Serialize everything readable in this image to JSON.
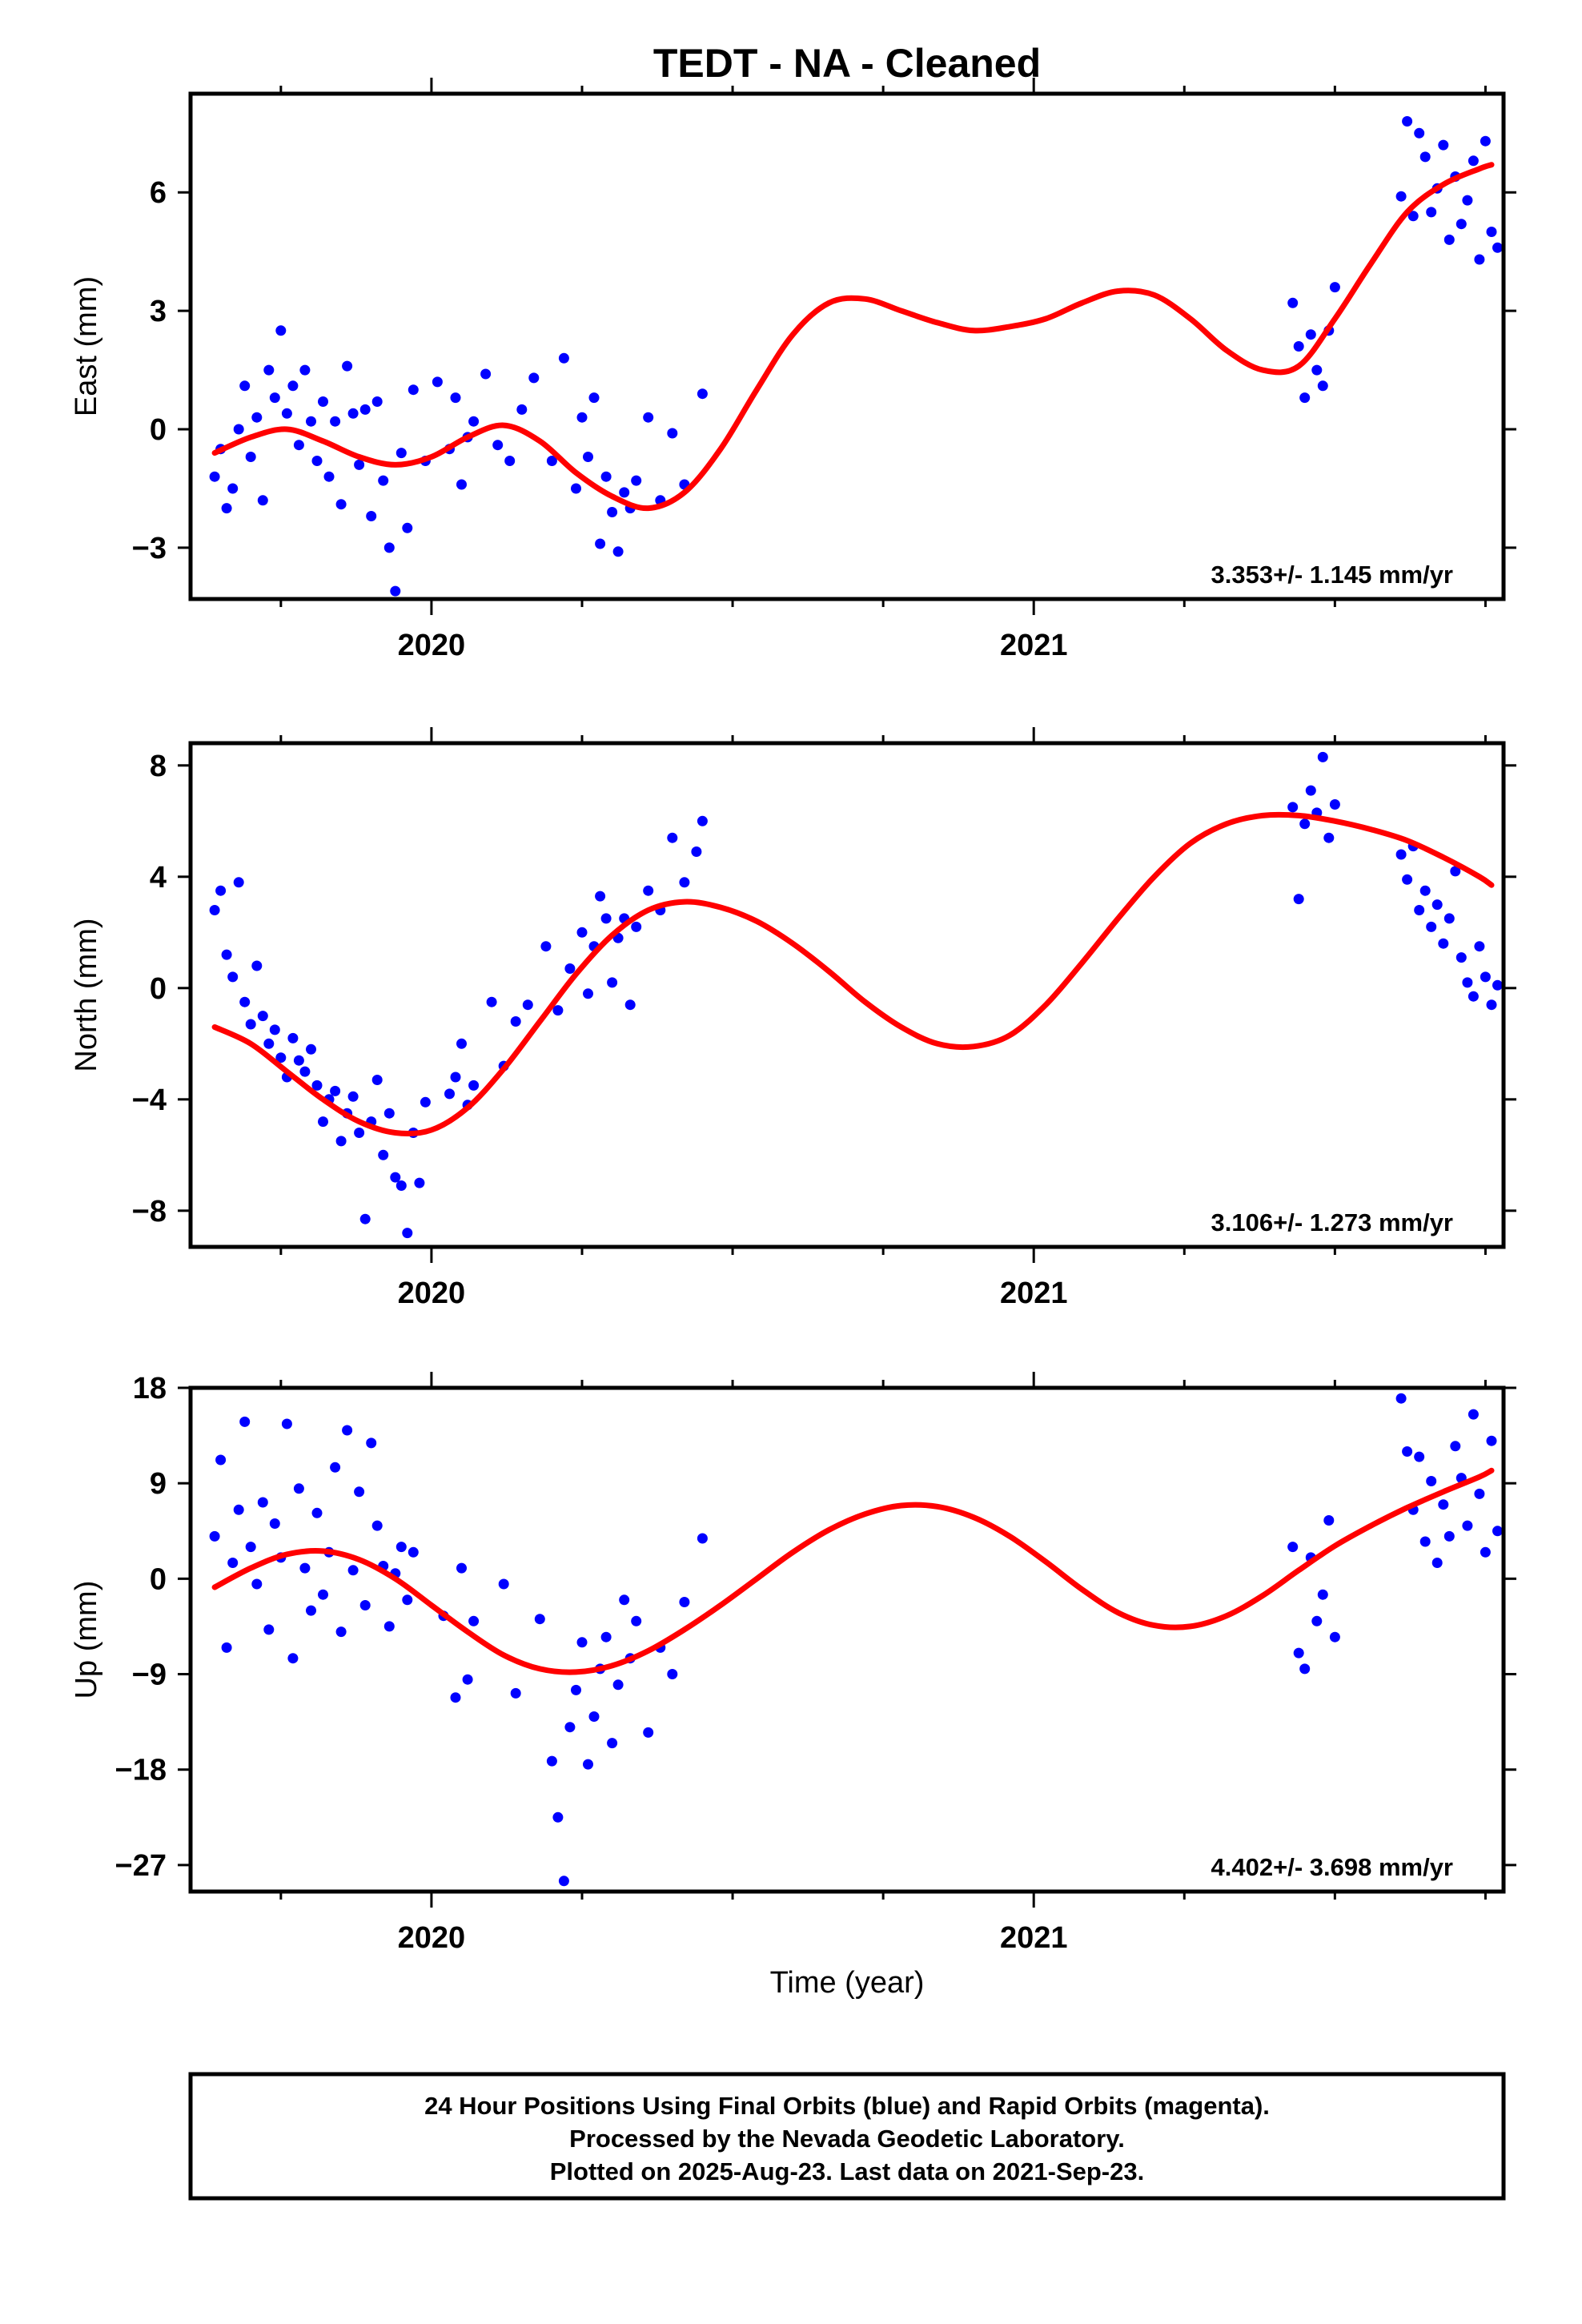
{
  "title": "TEDT  - NA - Cleaned",
  "xaxis_label": "Time (year)",
  "footer": [
    "24 Hour Positions Using Final Orbits (blue) and Rapid Orbits (magenta).",
    "Processed by the Nevada Geodetic Laboratory.",
    "Plotted on 2025-Aug-23. Last data on 2021-Sep-23."
  ],
  "colors": {
    "data_points": "#0000ff",
    "model_curve": "#ff0000",
    "frame": "#000000"
  },
  "chart_data": [
    {
      "type": "scatter",
      "panel": "east",
      "ylabel": "East (mm)",
      "rate_text": "3.353+/- 1.145 mm/yr",
      "xlim": [
        2019.6,
        2021.78
      ],
      "ylim": [
        -4.3,
        8.5
      ],
      "yticks": [
        -3,
        0,
        3,
        6
      ],
      "xticks_major": [
        2020,
        2021
      ],
      "xticks_minor": [
        2019.75,
        2020.25,
        2020.5,
        2020.75,
        2021.25,
        2021.5,
        2021.75
      ],
      "grid": false,
      "series": [
        {
          "kind": "points",
          "x": [
            2019.64,
            2019.65,
            2019.66,
            2019.67,
            2019.68,
            2019.69,
            2019.7,
            2019.71,
            2019.72,
            2019.73,
            2019.74,
            2019.75,
            2019.76,
            2019.77,
            2019.78,
            2019.79,
            2019.8,
            2019.81,
            2019.82,
            2019.83,
            2019.84,
            2019.85,
            2019.86,
            2019.87,
            2019.88,
            2019.89,
            2019.9,
            2019.91,
            2019.92,
            2019.93,
            2019.94,
            2019.95,
            2019.96,
            2019.97,
            2019.99,
            2020.01,
            2020.03,
            2020.04,
            2020.05,
            2020.06,
            2020.07,
            2020.09,
            2020.11,
            2020.13,
            2020.15,
            2020.17,
            2020.2,
            2020.22,
            2020.24,
            2020.25,
            2020.26,
            2020.27,
            2020.28,
            2020.29,
            2020.3,
            2020.31,
            2020.32,
            2020.33,
            2020.34,
            2020.36,
            2020.38,
            2020.4,
            2020.42,
            2020.45,
            2021.43,
            2021.44,
            2021.45,
            2021.46,
            2021.47,
            2021.48,
            2021.49,
            2021.5,
            2021.61,
            2021.62,
            2021.63,
            2021.64,
            2021.65,
            2021.66,
            2021.67,
            2021.68,
            2021.69,
            2021.7,
            2021.71,
            2021.72,
            2021.73,
            2021.74,
            2021.75,
            2021.76,
            2021.77
          ],
          "y": [
            -1.2,
            -0.5,
            -2.0,
            -1.5,
            0.0,
            1.1,
            -0.7,
            0.3,
            -1.8,
            1.5,
            0.8,
            2.5,
            0.4,
            1.1,
            -0.4,
            1.5,
            0.2,
            -0.8,
            0.7,
            -1.2,
            0.2,
            -1.9,
            1.6,
            0.4,
            -0.9,
            0.5,
            -2.2,
            0.7,
            -1.3,
            -3.0,
            -4.1,
            -0.6,
            -2.5,
            1.0,
            -0.8,
            1.2,
            -0.5,
            0.8,
            -1.4,
            -0.2,
            0.2,
            1.4,
            -0.4,
            -0.8,
            0.5,
            1.3,
            -0.8,
            1.8,
            -1.5,
            0.3,
            -0.7,
            0.8,
            -2.9,
            -1.2,
            -2.1,
            -3.1,
            -1.6,
            -2.0,
            -1.3,
            0.3,
            -1.8,
            -0.1,
            -1.4,
            0.9,
            3.2,
            2.1,
            0.8,
            2.4,
            1.5,
            1.1,
            2.5,
            3.6,
            5.9,
            7.8,
            5.4,
            7.5,
            6.9,
            5.5,
            6.1,
            7.2,
            4.8,
            6.4,
            5.2,
            5.8,
            6.8,
            4.3,
            7.3,
            5.0,
            4.6
          ]
        },
        {
          "kind": "model",
          "x": [
            2019.64,
            2019.7,
            2019.76,
            2019.82,
            2019.88,
            2019.94,
            2020.0,
            2020.06,
            2020.12,
            2020.18,
            2020.24,
            2020.3,
            2020.36,
            2020.42,
            2020.48,
            2020.54,
            2020.6,
            2020.66,
            2020.72,
            2020.78,
            2020.84,
            2020.9,
            2020.96,
            2021.02,
            2021.08,
            2021.14,
            2021.2,
            2021.26,
            2021.32,
            2021.38,
            2021.44,
            2021.5,
            2021.56,
            2021.62,
            2021.68,
            2021.74,
            2021.76
          ],
          "y": [
            -0.6,
            -0.2,
            0.0,
            -0.3,
            -0.7,
            -0.9,
            -0.7,
            -0.2,
            0.1,
            -0.3,
            -1.1,
            -1.7,
            -2.0,
            -1.6,
            -0.5,
            1.0,
            2.4,
            3.2,
            3.3,
            3.0,
            2.7,
            2.5,
            2.6,
            2.8,
            3.2,
            3.5,
            3.4,
            2.8,
            2.0,
            1.5,
            1.6,
            2.8,
            4.2,
            5.5,
            6.2,
            6.6,
            6.7
          ]
        }
      ]
    },
    {
      "type": "scatter",
      "panel": "north",
      "ylabel": "North (mm)",
      "rate_text": "3.106+/- 1.273 mm/yr",
      "xlim": [
        2019.6,
        2021.78
      ],
      "ylim": [
        -9.3,
        8.8
      ],
      "yticks": [
        -8,
        -4,
        0,
        4,
        8
      ],
      "xticks_major": [
        2020,
        2021
      ],
      "xticks_minor": [
        2019.75,
        2020.25,
        2020.5,
        2020.75,
        2021.25,
        2021.5,
        2021.75
      ],
      "grid": false,
      "series": [
        {
          "kind": "points",
          "x": [
            2019.64,
            2019.65,
            2019.66,
            2019.67,
            2019.68,
            2019.69,
            2019.7,
            2019.71,
            2019.72,
            2019.73,
            2019.74,
            2019.75,
            2019.76,
            2019.77,
            2019.78,
            2019.79,
            2019.8,
            2019.81,
            2019.82,
            2019.83,
            2019.84,
            2019.85,
            2019.86,
            2019.87,
            2019.88,
            2019.89,
            2019.9,
            2019.91,
            2019.92,
            2019.93,
            2019.94,
            2019.95,
            2019.96,
            2019.97,
            2019.98,
            2019.99,
            2020.03,
            2020.04,
            2020.05,
            2020.06,
            2020.07,
            2020.1,
            2020.12,
            2020.14,
            2020.16,
            2020.19,
            2020.21,
            2020.23,
            2020.25,
            2020.26,
            2020.27,
            2020.28,
            2020.29,
            2020.3,
            2020.31,
            2020.32,
            2020.33,
            2020.34,
            2020.36,
            2020.38,
            2020.4,
            2020.42,
            2020.44,
            2020.45,
            2021.43,
            2021.44,
            2021.45,
            2021.46,
            2021.47,
            2021.48,
            2021.49,
            2021.5,
            2021.61,
            2021.62,
            2021.63,
            2021.64,
            2021.65,
            2021.66,
            2021.67,
            2021.68,
            2021.69,
            2021.7,
            2021.71,
            2021.72,
            2021.73,
            2021.74,
            2021.75,
            2021.76,
            2021.77
          ],
          "y": [
            2.8,
            3.5,
            1.2,
            0.4,
            3.8,
            -0.5,
            -1.3,
            0.8,
            -1.0,
            -2.0,
            -1.5,
            -2.5,
            -3.2,
            -1.8,
            -2.6,
            -3.0,
            -2.2,
            -3.5,
            -4.8,
            -4.0,
            -3.7,
            -5.5,
            -4.5,
            -3.9,
            -5.2,
            -8.3,
            -4.8,
            -3.3,
            -6.0,
            -4.5,
            -6.8,
            -7.1,
            -8.8,
            -5.2,
            -7.0,
            -4.1,
            -3.8,
            -3.2,
            -2.0,
            -4.2,
            -3.5,
            -0.5,
            -2.8,
            -1.2,
            -0.6,
            1.5,
            -0.8,
            0.7,
            2.0,
            -0.2,
            1.5,
            3.3,
            2.5,
            0.2,
            1.8,
            2.5,
            -0.6,
            2.2,
            3.5,
            2.8,
            5.4,
            3.8,
            4.9,
            6.0,
            6.5,
            3.2,
            5.9,
            7.1,
            6.3,
            8.3,
            5.4,
            6.6,
            4.8,
            3.9,
            5.1,
            2.8,
            3.5,
            2.2,
            3.0,
            1.6,
            2.5,
            4.2,
            1.1,
            0.2,
            -0.3,
            1.5,
            0.4,
            -0.6,
            0.1
          ]
        },
        {
          "kind": "model",
          "x": [
            2019.64,
            2019.7,
            2019.76,
            2019.82,
            2019.88,
            2019.94,
            2020.0,
            2020.06,
            2020.12,
            2020.18,
            2020.24,
            2020.3,
            2020.36,
            2020.42,
            2020.48,
            2020.54,
            2020.6,
            2020.66,
            2020.72,
            2020.78,
            2020.84,
            2020.9,
            2020.96,
            2021.02,
            2021.08,
            2021.14,
            2021.2,
            2021.26,
            2021.32,
            2021.38,
            2021.44,
            2021.5,
            2021.56,
            2021.62,
            2021.68,
            2021.74,
            2021.76
          ],
          "y": [
            -1.4,
            -2.0,
            -3.0,
            -4.0,
            -4.8,
            -5.2,
            -5.1,
            -4.3,
            -2.9,
            -1.2,
            0.5,
            1.9,
            2.8,
            3.1,
            2.9,
            2.4,
            1.6,
            0.6,
            -0.5,
            -1.4,
            -2.0,
            -2.1,
            -1.7,
            -0.6,
            0.9,
            2.5,
            4.0,
            5.2,
            5.9,
            6.2,
            6.2,
            6.0,
            5.7,
            5.3,
            4.7,
            4.0,
            3.7
          ]
        }
      ]
    },
    {
      "type": "scatter",
      "panel": "up",
      "ylabel": "Up (mm)",
      "rate_text": "4.402+/- 3.698 mm/yr",
      "xlim": [
        2019.6,
        2021.78
      ],
      "ylim": [
        -29.5,
        18.0
      ],
      "yticks": [
        -27,
        -18,
        -9,
        0,
        9,
        18
      ],
      "xticks_major": [
        2020,
        2021
      ],
      "xticks_minor": [
        2019.75,
        2020.25,
        2020.5,
        2020.75,
        2021.25,
        2021.5,
        2021.75
      ],
      "xlabel": "Time (year)",
      "grid": false,
      "series": [
        {
          "kind": "points",
          "x": [
            2019.64,
            2019.65,
            2019.66,
            2019.67,
            2019.68,
            2019.69,
            2019.7,
            2019.71,
            2019.72,
            2019.73,
            2019.74,
            2019.75,
            2019.76,
            2019.77,
            2019.78,
            2019.79,
            2019.8,
            2019.81,
            2019.82,
            2019.83,
            2019.84,
            2019.85,
            2019.86,
            2019.87,
            2019.88,
            2019.89,
            2019.9,
            2019.91,
            2019.92,
            2019.93,
            2019.94,
            2019.95,
            2019.96,
            2019.97,
            2020.02,
            2020.04,
            2020.05,
            2020.06,
            2020.07,
            2020.12,
            2020.14,
            2020.18,
            2020.2,
            2020.21,
            2020.22,
            2020.23,
            2020.24,
            2020.25,
            2020.26,
            2020.27,
            2020.28,
            2020.29,
            2020.3,
            2020.31,
            2020.32,
            2020.33,
            2020.34,
            2020.36,
            2020.38,
            2020.4,
            2020.42,
            2020.45,
            2021.43,
            2021.44,
            2021.45,
            2021.46,
            2021.47,
            2021.48,
            2021.49,
            2021.5,
            2021.61,
            2021.62,
            2021.63,
            2021.64,
            2021.65,
            2021.66,
            2021.67,
            2021.68,
            2021.69,
            2021.7,
            2021.71,
            2021.72,
            2021.73,
            2021.74,
            2021.75,
            2021.76,
            2021.77
          ],
          "y": [
            4.0,
            11.2,
            -6.5,
            1.5,
            6.5,
            14.8,
            3.0,
            -0.5,
            7.2,
            -4.8,
            5.2,
            2.0,
            14.6,
            -7.5,
            8.5,
            1.0,
            -3.0,
            6.2,
            -1.5,
            2.5,
            10.5,
            -5.0,
            14.0,
            0.8,
            8.2,
            -2.5,
            12.8,
            5.0,
            1.2,
            -4.5,
            0.5,
            3.0,
            -2.0,
            2.5,
            -3.5,
            -11.2,
            1.0,
            -9.5,
            -4.0,
            -0.5,
            -10.8,
            -3.8,
            -17.2,
            -22.5,
            -28.5,
            -14.0,
            -10.5,
            -6.0,
            -17.5,
            -13.0,
            -8.5,
            -5.5,
            -15.5,
            -10.0,
            -2.0,
            -7.5,
            -4.0,
            -14.5,
            -6.5,
            -9.0,
            -2.2,
            3.8,
            3.0,
            -7.0,
            -8.5,
            2.0,
            -4.0,
            -1.5,
            5.5,
            -5.5,
            17.0,
            12.0,
            6.5,
            11.5,
            3.5,
            9.2,
            1.5,
            7.0,
            4.0,
            12.5,
            9.5,
            5.0,
            15.5,
            8.0,
            2.5,
            13.0,
            4.5
          ]
        },
        {
          "kind": "model",
          "x": [
            2019.64,
            2019.7,
            2019.76,
            2019.82,
            2019.88,
            2019.94,
            2020.0,
            2020.06,
            2020.12,
            2020.18,
            2020.24,
            2020.3,
            2020.36,
            2020.42,
            2020.48,
            2020.54,
            2020.6,
            2020.66,
            2020.72,
            2020.78,
            2020.84,
            2020.9,
            2020.96,
            2021.02,
            2021.08,
            2021.14,
            2021.2,
            2021.26,
            2021.32,
            2021.38,
            2021.44,
            2021.5,
            2021.56,
            2021.62,
            2021.68,
            2021.74,
            2021.76
          ],
          "y": [
            -0.8,
            1.0,
            2.3,
            2.6,
            1.8,
            0.0,
            -2.5,
            -5.0,
            -7.2,
            -8.5,
            -8.8,
            -8.2,
            -6.8,
            -4.8,
            -2.5,
            0.0,
            2.5,
            4.6,
            6.1,
            6.9,
            6.8,
            5.8,
            4.0,
            1.6,
            -1.0,
            -3.2,
            -4.4,
            -4.5,
            -3.5,
            -1.6,
            0.8,
            3.1,
            5.0,
            6.7,
            8.2,
            9.6,
            10.2
          ]
        }
      ]
    }
  ]
}
